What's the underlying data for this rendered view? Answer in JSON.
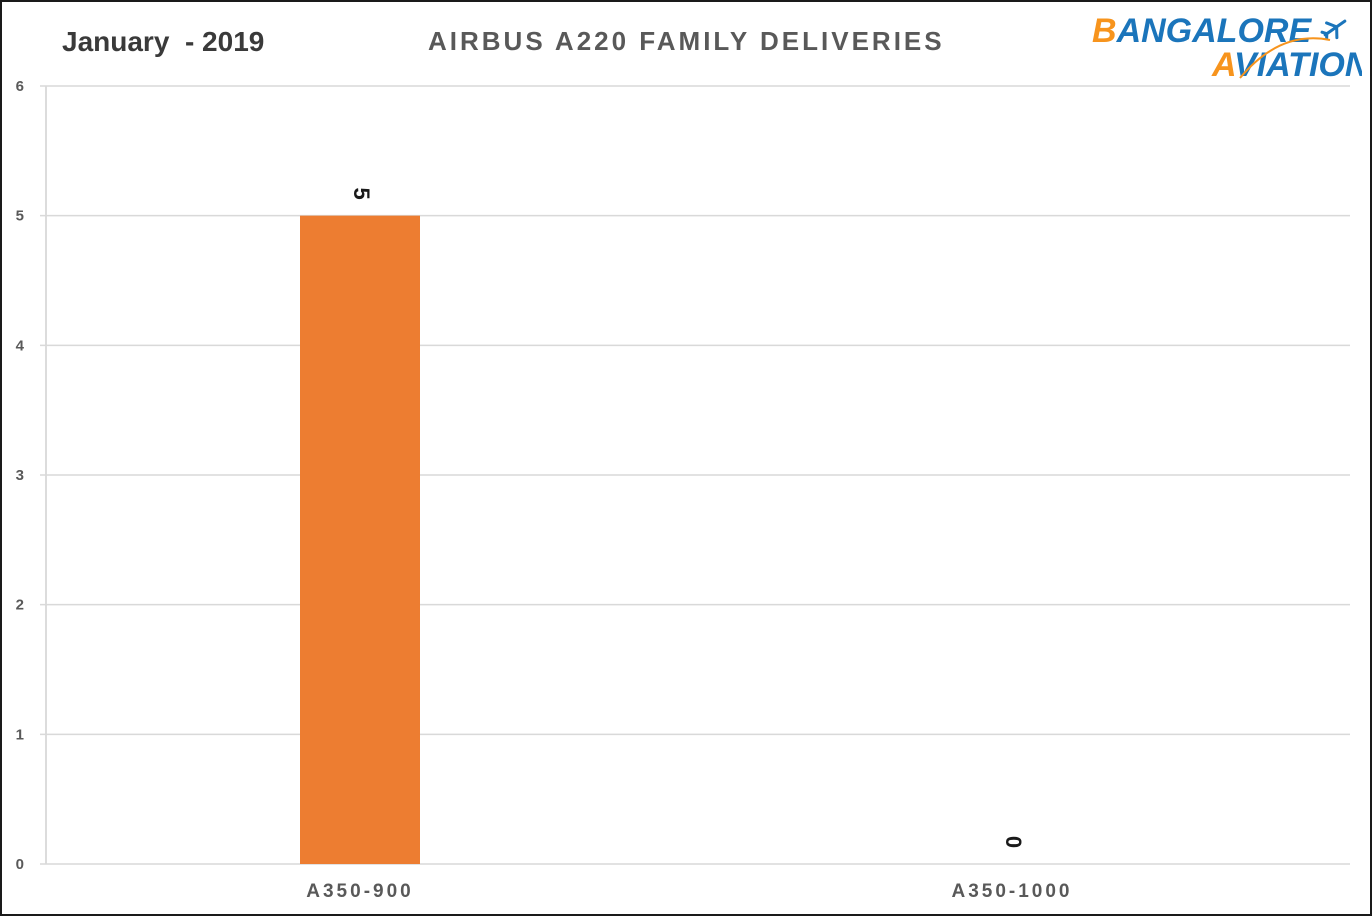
{
  "header": {
    "date": "January  - 2019"
  },
  "logo": {
    "line1_orange": "B",
    "line1_blue": "ANGALORE",
    "line2_orange": "A",
    "line2_blue": "VIATION",
    "icon": "airplane-icon",
    "colors": {
      "orange": "#F7941D",
      "blue": "#1B75BB"
    }
  },
  "chart_data": {
    "type": "bar",
    "title": "AIRBUS  A220  FAMILY  DELIVERIES",
    "categories": [
      "A350-900",
      "A350-1000"
    ],
    "values": [
      5,
      0
    ],
    "ylim": [
      0,
      6
    ],
    "yticks": [
      "0",
      "1",
      "2",
      "3",
      "4",
      "5",
      "6"
    ],
    "grid": true,
    "legend": "none",
    "bar_color": "#ED7D31",
    "data_labels": [
      "5",
      "0"
    ]
  }
}
